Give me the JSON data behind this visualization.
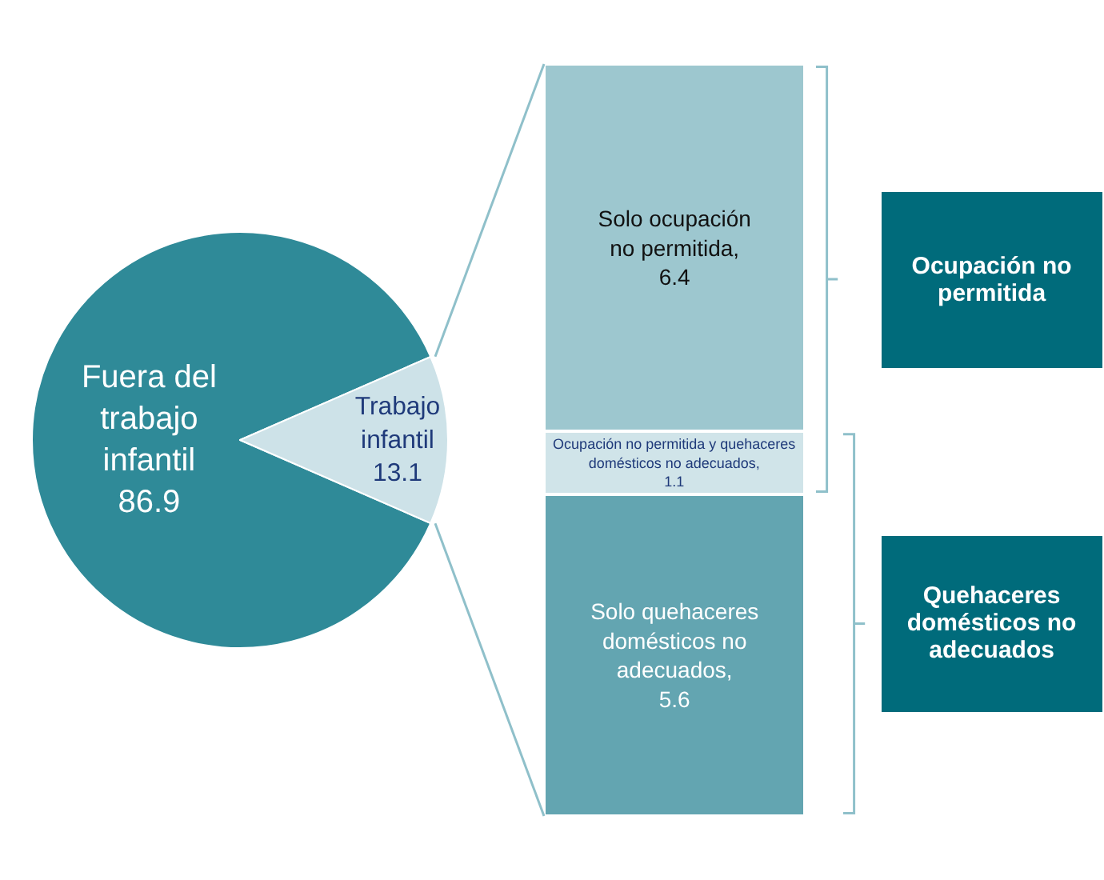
{
  "chart_data": [
    {
      "type": "pie",
      "categories": [
        "Fuera del trabajo infantil",
        "Trabajo infantil"
      ],
      "values": [
        86.9,
        13.1
      ],
      "colors": [
        "#2f8a98",
        "#cde2e8"
      ],
      "data_labels": true
    },
    {
      "type": "bar",
      "stacked": true,
      "categories": [
        null
      ],
      "data_labels": true,
      "series": [
        {
          "name": "Solo quehaceres domésticos no adecuados,",
          "color": "#63a5b1",
          "values": [
            5.6
          ]
        },
        {
          "name": "Ocupación no permitida y quehaceres domésticos no adecuados,",
          "color": "#d0e4e9",
          "values": [
            1.1
          ]
        },
        {
          "name": "Solo ocupación no permitida,",
          "color": "#9dc7cf",
          "values": [
            6.4
          ]
        }
      ],
      "annotations": [
        "Ocupación no permitida",
        "Quehaceres domésticos no adecuados"
      ]
    }
  ]
}
